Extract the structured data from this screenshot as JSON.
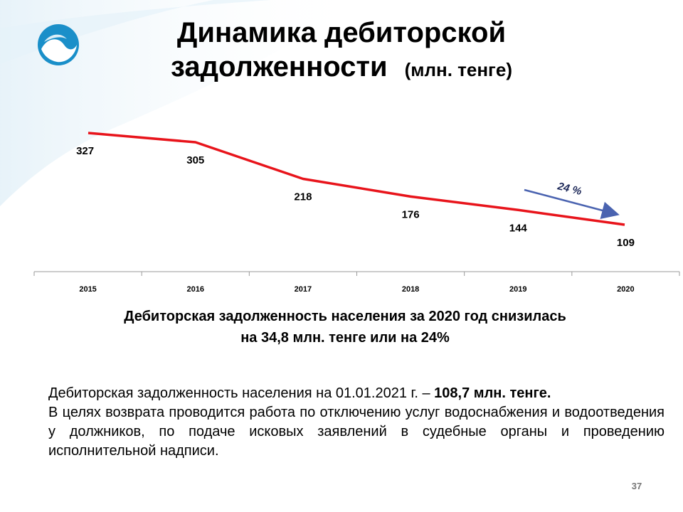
{
  "slide": {
    "title_line1": "Динамика дебиторской",
    "title_line2": "задолженности",
    "title_unit": "(млн. тенге)",
    "summary_line1": "Дебиторская задолженность населения за 2020 год снизилась",
    "summary_line2": "на 34,8 млн. тенге или на 24%",
    "body_p1_text": "Дебиторская задолженность населения на 01.01.2021 г. – ",
    "body_p1_bold": "108,7 млн. тенге.",
    "body_p2": "В целях возврата проводится работа по отключению услуг водоснабжения и водоотведения у должников, по подаче исковых заявлений в судебные органы и проведению исполнительной надписи.",
    "page_number": "37"
  },
  "colors": {
    "line": "#e8141b",
    "arrow": "#4a63b0",
    "axis": "#9a9a9a",
    "logo": "#1a8fc9"
  },
  "icons": {
    "logo": "company-logo-wave-icon"
  },
  "chart_data": {
    "type": "line",
    "categories": [
      "2015",
      "2016",
      "2017",
      "2018",
      "2019",
      "2020"
    ],
    "values": [
      327,
      305,
      218,
      176,
      144,
      109
    ],
    "data_labels": [
      "327",
      "305",
      "218",
      "176",
      "144",
      "109"
    ],
    "annotation": "24 %",
    "grid": false,
    "legend": "none"
  }
}
